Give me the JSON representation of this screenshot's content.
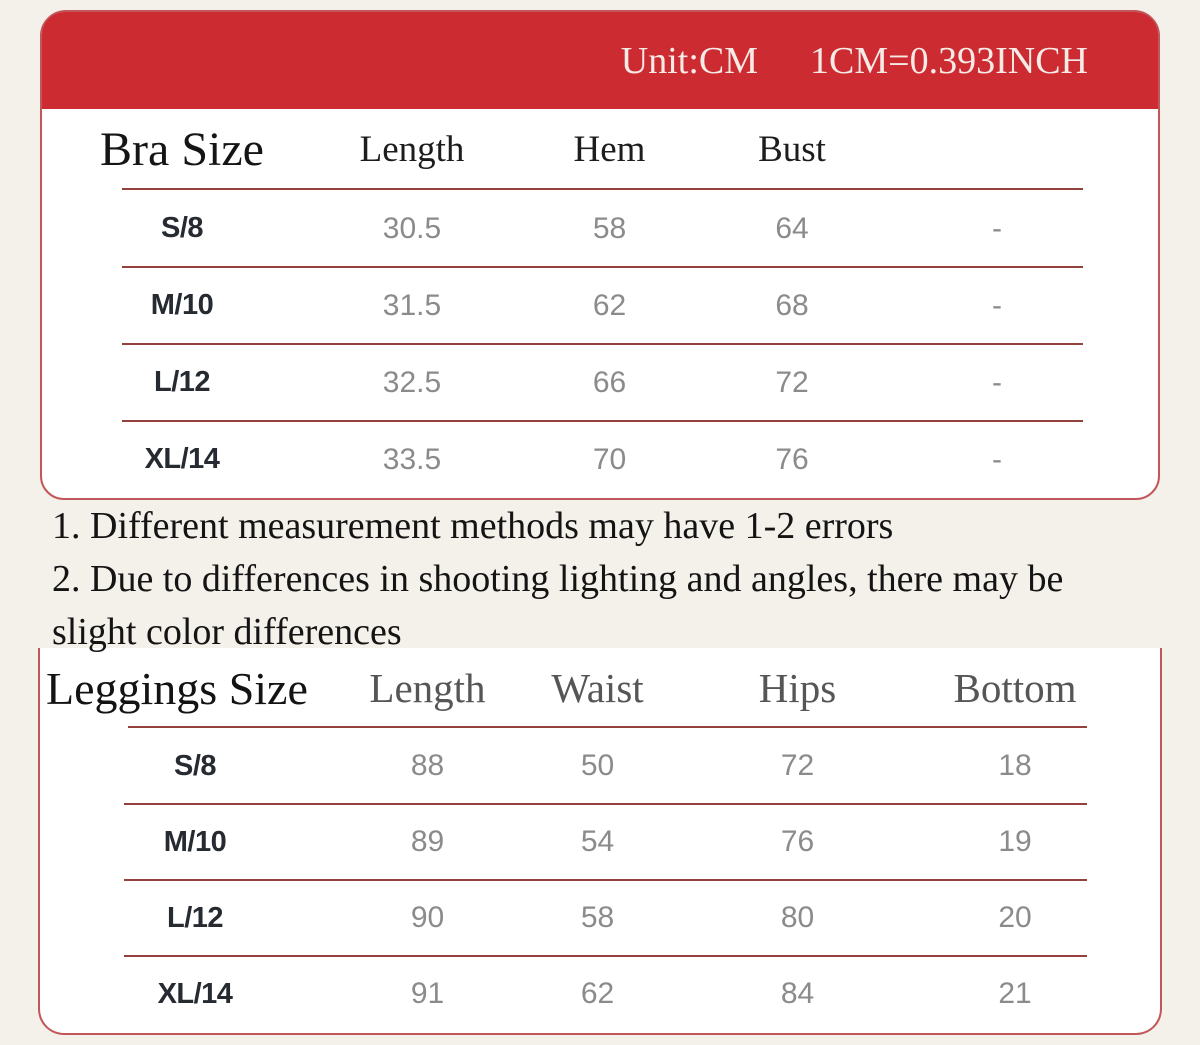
{
  "banner": {
    "unit_label": "Unit:CM",
    "conversion_label": "1CM=0.393INCH"
  },
  "bra_table": {
    "title": "Bra Size",
    "columns": [
      "Length",
      "Hem",
      "Bust"
    ],
    "rows": [
      {
        "size": "S/8",
        "length": "30.5",
        "hem": "58",
        "bust": "64",
        "extra": "-"
      },
      {
        "size": "M/10",
        "length": "31.5",
        "hem": "62",
        "bust": "68",
        "extra": "-"
      },
      {
        "size": "L/12",
        "length": "32.5",
        "hem": "66",
        "bust": "72",
        "extra": "-"
      },
      {
        "size": "XL/14",
        "length": "33.5",
        "hem": "70",
        "bust": "76",
        "extra": "-"
      }
    ]
  },
  "notes": {
    "lines": [
      "1. Different measurement methods may have 1-2 errors",
      "2. Due to differences in shooting lighting and angles, there may be",
      "slight color differences"
    ]
  },
  "leggings_table": {
    "title": "Leggings Size",
    "columns": [
      "Length",
      "Waist",
      "Hips",
      "Bottom"
    ],
    "rows": [
      {
        "size": "S/8",
        "length": "88",
        "waist": "50",
        "hips": "72",
        "bottom": "18"
      },
      {
        "size": "M/10",
        "length": "89",
        "waist": "54",
        "hips": "76",
        "bottom": "19"
      },
      {
        "size": "L/12",
        "length": "90",
        "waist": "58",
        "hips": "80",
        "bottom": "20"
      },
      {
        "size": "XL/14",
        "length": "91",
        "waist": "62",
        "hips": "84",
        "bottom": "21"
      }
    ]
  },
  "colors": {
    "banner_red": "#cb2b31",
    "card_border_red": "#c1575a",
    "divider_maroon": "#94403c",
    "background_cream": "#f4f0ea",
    "value_gray": "#8b8b8b"
  }
}
